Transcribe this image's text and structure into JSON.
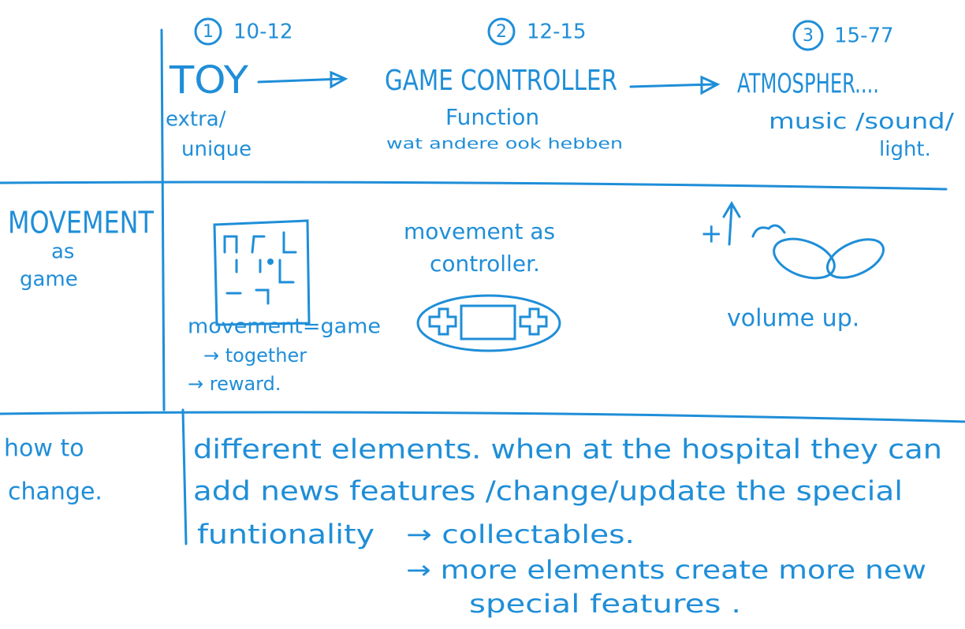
{
  "header": {
    "columns": [
      {
        "number": "1",
        "ages": "10-12",
        "title": "TOY",
        "notes": [
          "extra/",
          "unique"
        ]
      },
      {
        "number": "2",
        "ages": "12-15",
        "title": "GAME CONTROLLER",
        "notes": [
          "Function",
          "wat andere ook hebben"
        ]
      },
      {
        "number": "3",
        "ages": "15-77",
        "title": "ATMOSPHER....",
        "notes": [
          "music /sound/",
          "light."
        ]
      }
    ]
  },
  "rows": [
    {
      "label": [
        "MOVEMENT",
        "as",
        "game"
      ],
      "cells": [
        [
          "movement=game",
          "→ together",
          "→ reward."
        ],
        [
          "movement as",
          "controller."
        ],
        [
          "+",
          "volume up."
        ]
      ]
    },
    {
      "label": [
        "how to",
        "change."
      ],
      "text": [
        "different elements. when at the hospital they can",
        "add news features /change/update the special",
        "funtionality",
        "→ collectables.",
        "→ more elements create more new",
        "special features ."
      ]
    }
  ]
}
